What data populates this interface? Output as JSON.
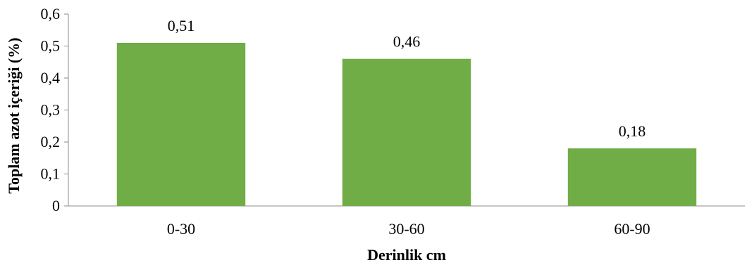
{
  "chart_data": {
    "type": "bar",
    "categories": [
      "0-30",
      "30-60",
      "60-90"
    ],
    "values": [
      0.51,
      0.46,
      0.18
    ],
    "data_labels": [
      "0,51",
      "0,46",
      "0,18"
    ],
    "xlabel": "Derinlik cm",
    "ylabel": "Toplam azot içeriği (%)",
    "ylim": [
      0,
      0.6
    ],
    "yticks": [
      0,
      0.1,
      0.2,
      0.3,
      0.4,
      0.5,
      0.6
    ],
    "ytick_labels": [
      "0",
      "0,1",
      "0,2",
      "0,3",
      "0,4",
      "0,5",
      "0,6"
    ],
    "grid": false,
    "legend": "none",
    "bar_color": "#70ad47"
  }
}
